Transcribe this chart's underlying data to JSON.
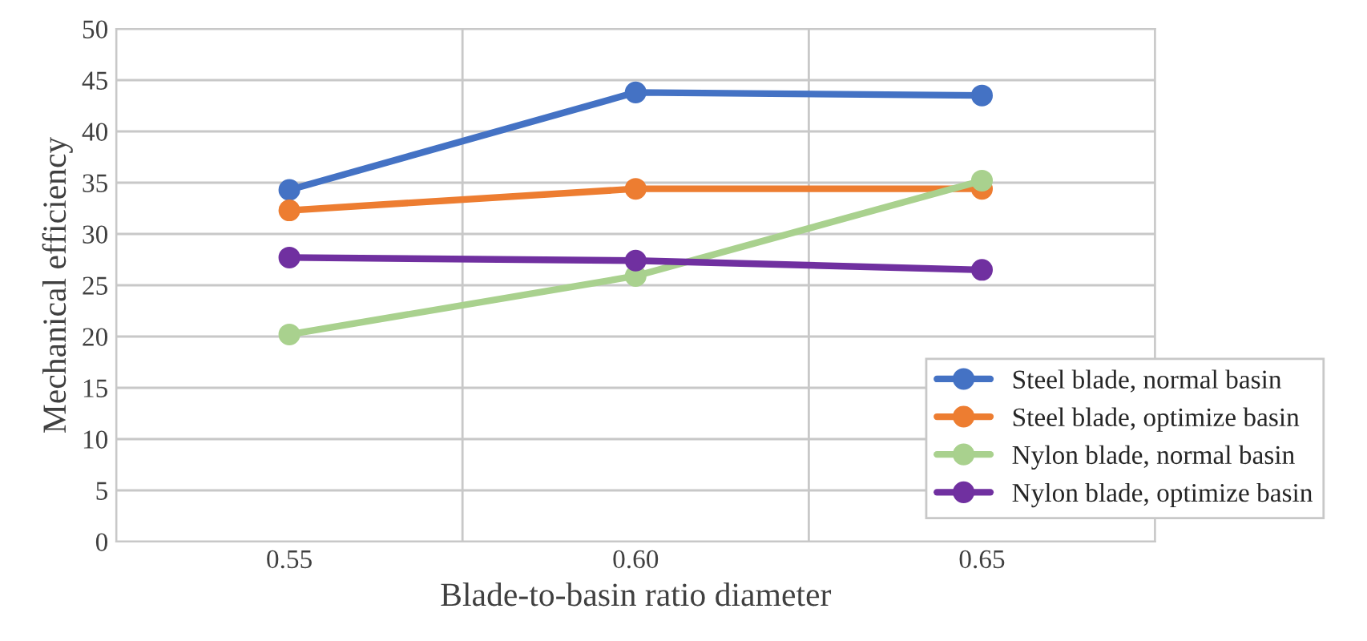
{
  "chart_data": {
    "type": "line",
    "xlabel": "Blade-to-basin ratio diameter",
    "ylabel": "Mechanical efficiency",
    "categories": [
      "0.55",
      "0.60",
      "0.65"
    ],
    "series": [
      {
        "name": "Steel blade, normal basin",
        "color": "#4472c4",
        "values": [
          34.3,
          43.8,
          43.5
        ]
      },
      {
        "name": "Steel blade, optimize basin",
        "color": "#ed7d31",
        "values": [
          32.3,
          34.4,
          34.4
        ]
      },
      {
        "name": "Nylon blade, normal basin",
        "color": "#a9d18e",
        "values": [
          20.2,
          25.9,
          35.2
        ]
      },
      {
        "name": "Nylon blade, optimize basin",
        "color": "#7030a0",
        "values": [
          27.7,
          27.4,
          26.5
        ]
      }
    ],
    "ylim": [
      0,
      50
    ],
    "yticks": [
      0,
      5,
      10,
      15,
      20,
      25,
      30,
      35,
      40,
      45,
      50
    ],
    "grid": true,
    "legend": "bottom right",
    "marker": "circle",
    "line_style": "solid"
  }
}
